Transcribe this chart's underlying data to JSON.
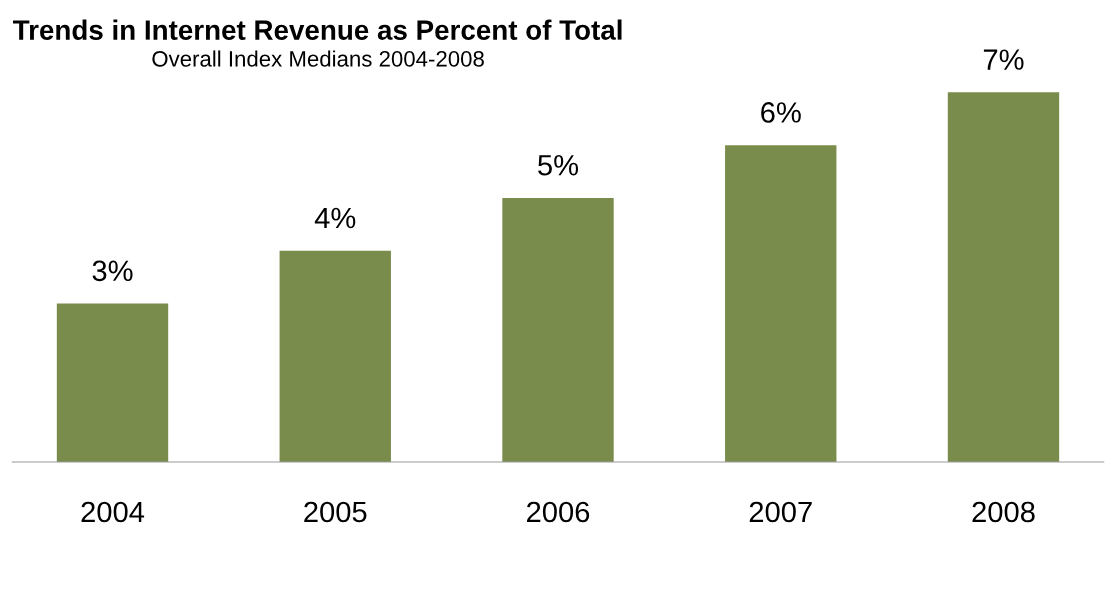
{
  "chart_data": {
    "type": "bar",
    "title": "Trends in Internet Revenue as Percent of Total",
    "subtitle": "Overall Index Medians 2004-2008",
    "categories": [
      "2004",
      "2005",
      "2006",
      "2007",
      "2008"
    ],
    "values": [
      3,
      4,
      5,
      6,
      7
    ],
    "value_labels": [
      "3%",
      "4%",
      "5%",
      "6%",
      "7%"
    ],
    "color": "#7a8c4c",
    "grid": false,
    "legend": false
  }
}
